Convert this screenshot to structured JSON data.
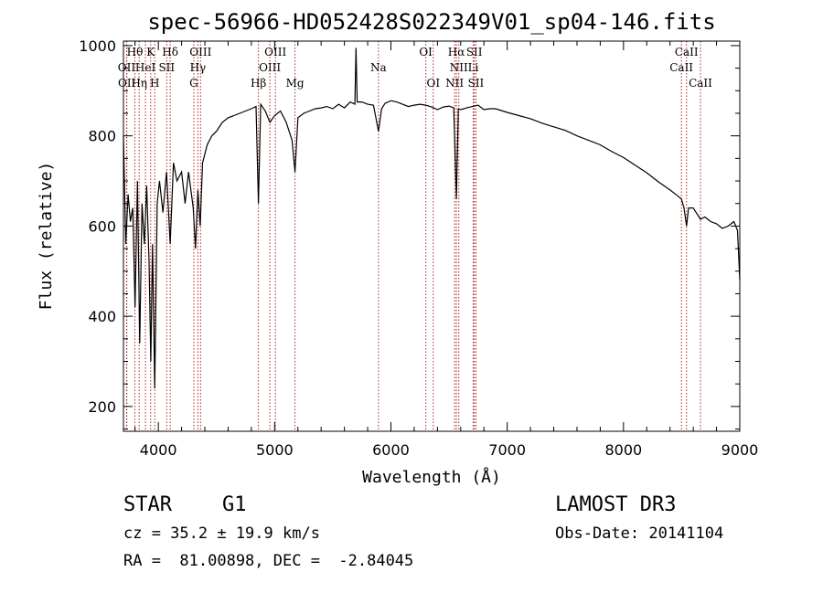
{
  "chart_data": {
    "type": "line",
    "title": "spec-56966-HD052428S022349V01_sp04-146.fits",
    "xlabel": "Wavelength (Å)",
    "ylabel": "Flux (relative)",
    "xlim": [
      3700,
      9000
    ],
    "ylim": [
      145,
      1010
    ],
    "xticks": [
      4000,
      5000,
      6000,
      7000,
      8000,
      9000
    ],
    "yticks": [
      200,
      400,
      600,
      800,
      1000
    ],
    "grid": false,
    "series": [
      {
        "name": "spectrum",
        "x": [
          3700,
          3720,
          3740,
          3760,
          3780,
          3800,
          3820,
          3840,
          3860,
          3880,
          3900,
          3920,
          3935,
          3950,
          3969,
          3990,
          4010,
          4040,
          4070,
          4102,
          4130,
          4160,
          4200,
          4230,
          4260,
          4300,
          4320,
          4340,
          4360,
          4380,
          4420,
          4460,
          4500,
          4550,
          4600,
          4650,
          4700,
          4750,
          4800,
          4840,
          4861,
          4880,
          4920,
          4960,
          5000,
          5050,
          5100,
          5150,
          5175,
          5200,
          5250,
          5300,
          5350,
          5400,
          5450,
          5500,
          5550,
          5600,
          5650,
          5690,
          5700,
          5710,
          5750,
          5800,
          5850,
          5893,
          5920,
          5950,
          6000,
          6050,
          6100,
          6150,
          6200,
          6250,
          6300,
          6350,
          6400,
          6450,
          6500,
          6540,
          6563,
          6580,
          6600,
          6650,
          6700,
          6750,
          6800,
          6850,
          6900,
          6950,
          7000,
          7100,
          7200,
          7300,
          7400,
          7500,
          7600,
          7700,
          7800,
          7900,
          8000,
          8100,
          8200,
          8300,
          8400,
          8450,
          8498,
          8520,
          8542,
          8560,
          8600,
          8662,
          8700,
          8750,
          8800,
          8850,
          8900,
          8950,
          8980,
          9000
        ],
        "y": [
          800,
          560,
          670,
          610,
          640,
          420,
          700,
          340,
          650,
          560,
          690,
          520,
          300,
          560,
          240,
          650,
          700,
          630,
          720,
          560,
          740,
          700,
          720,
          650,
          720,
          640,
          550,
          680,
          600,
          740,
          780,
          800,
          810,
          830,
          840,
          845,
          850,
          855,
          860,
          865,
          650,
          870,
          855,
          830,
          845,
          855,
          830,
          790,
          720,
          840,
          850,
          855,
          860,
          862,
          865,
          860,
          870,
          862,
          875,
          870,
          995,
          875,
          875,
          870,
          868,
          810,
          860,
          872,
          878,
          875,
          870,
          865,
          868,
          870,
          868,
          864,
          858,
          864,
          866,
          862,
          660,
          860,
          858,
          862,
          865,
          868,
          858,
          860,
          860,
          856,
          852,
          845,
          838,
          828,
          820,
          812,
          800,
          790,
          780,
          765,
          752,
          735,
          718,
          698,
          680,
          670,
          660,
          640,
          600,
          640,
          640,
          615,
          620,
          610,
          605,
          595,
          600,
          610,
          590,
          480
        ]
      }
    ],
    "lines": [
      {
        "name": "Hθ",
        "wave": 3798,
        "row": 0
      },
      {
        "name": "OII",
        "wave": 3727,
        "row": 1
      },
      {
        "name": "OII",
        "wave": 3729,
        "row": 2
      },
      {
        "name": "Hη",
        "wave": 3835,
        "row": 2
      },
      {
        "name": "K",
        "wave": 3934,
        "row": 0
      },
      {
        "name": "HeI",
        "wave": 3889,
        "row": 1
      },
      {
        "name": "H",
        "wave": 3969,
        "row": 2
      },
      {
        "name": "SII",
        "wave": 4072,
        "row": 1
      },
      {
        "name": "Hδ",
        "wave": 4102,
        "row": 0
      },
      {
        "name": "OIII",
        "wave": 4363,
        "row": 0
      },
      {
        "name": "Hγ",
        "wave": 4340,
        "row": 1
      },
      {
        "name": "G",
        "wave": 4305,
        "row": 2
      },
      {
        "name": "OIII",
        "wave": 5007,
        "row": 0
      },
      {
        "name": "OIII",
        "wave": 4959,
        "row": 1
      },
      {
        "name": "Hβ",
        "wave": 4861,
        "row": 2
      },
      {
        "name": "Mg",
        "wave": 5175,
        "row": 2
      },
      {
        "name": "Na",
        "wave": 5893,
        "row": 1
      },
      {
        "name": "OI",
        "wave": 6300,
        "row": 0
      },
      {
        "name": "OI",
        "wave": 6364,
        "row": 2
      },
      {
        "name": "Hα",
        "wave": 6563,
        "row": 0
      },
      {
        "name": "SII",
        "wave": 6717,
        "row": 0
      },
      {
        "name": "NII",
        "wave": 6584,
        "row": 1
      },
      {
        "name": "Li",
        "wave": 6708,
        "row": 1
      },
      {
        "name": "NII",
        "wave": 6548,
        "row": 2
      },
      {
        "name": "SII",
        "wave": 6731,
        "row": 2
      },
      {
        "name": "CaII",
        "wave": 8542,
        "row": 0
      },
      {
        "name": "CaII",
        "wave": 8498,
        "row": 1
      },
      {
        "name": "CaII",
        "wave": 8662,
        "row": 2
      }
    ]
  },
  "info": {
    "object_class": "STAR",
    "subclass": "G1",
    "survey": "LAMOST DR3",
    "cz": "cz = 35.2 ± 19.9 km/s",
    "obs_date": "Obs-Date: 20141104",
    "coords": "RA =  81.00898, DEC =  -2.84045"
  }
}
